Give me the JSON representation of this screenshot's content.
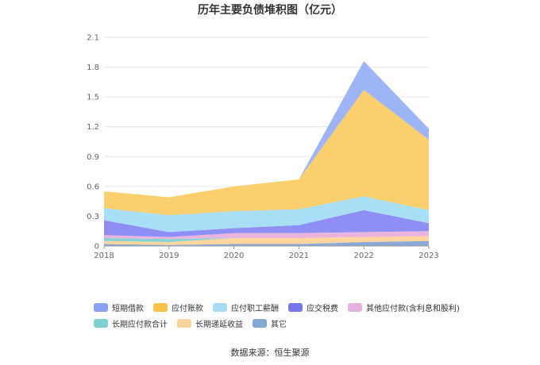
{
  "chart_data": {
    "type": "area",
    "stacked": true,
    "title": "历年主要负债堆积图（亿元）",
    "categories": [
      "2018",
      "2019",
      "2020",
      "2021",
      "2022",
      "2023"
    ],
    "yticks": [
      "0",
      "0.3",
      "0.6",
      "0.9",
      "1.2",
      "1.5",
      "1.8",
      "2.1"
    ],
    "ylim": [
      0,
      2.1
    ],
    "grid": true,
    "legend_position": "bottom",
    "series": [
      {
        "name": "其它",
        "color": "#8aa9d8",
        "values": [
          0.02,
          0.01,
          0.02,
          0.02,
          0.04,
          0.05
        ]
      },
      {
        "name": "长期递延收益",
        "color": "#fcd59c",
        "values": [
          0.03,
          0.03,
          0.06,
          0.06,
          0.05,
          0.05
        ]
      },
      {
        "name": "长期应付款合计",
        "color": "#87d3d3",
        "values": [
          0.03,
          0.03,
          0.0,
          0.0,
          0.0,
          0.0
        ]
      },
      {
        "name": "其他应付款(含利息和股利)",
        "color": "#eab5dd",
        "values": [
          0.03,
          0.02,
          0.05,
          0.05,
          0.05,
          0.05
        ]
      },
      {
        "name": "应交税费",
        "color": "#8e8ef5",
        "values": [
          0.15,
          0.05,
          0.05,
          0.08,
          0.22,
          0.08
        ]
      },
      {
        "name": "应付职工薪酬",
        "color": "#a9def7",
        "values": [
          0.12,
          0.17,
          0.17,
          0.16,
          0.14,
          0.13
        ]
      },
      {
        "name": "应付账款",
        "color": "#fccf6e",
        "values": [
          0.17,
          0.18,
          0.25,
          0.3,
          1.07,
          0.71
        ]
      },
      {
        "name": "短期借款",
        "color": "#9db5f7",
        "values": [
          0.0,
          0.0,
          0.0,
          0.0,
          0.29,
          0.11
        ]
      }
    ]
  },
  "legend": {
    "items": [
      {
        "label": "短期借款",
        "color": "#87a3f2"
      },
      {
        "label": "应付账款",
        "color": "#f9c24a"
      },
      {
        "label": "应付职工薪酬",
        "color": "#a6dcf5"
      },
      {
        "label": "应交税费",
        "color": "#7777ec"
      },
      {
        "label": "其他应付款(含利息和股利)",
        "color": "#e6b1dc"
      },
      {
        "label": "长期应付款合计",
        "color": "#7fd0d0"
      },
      {
        "label": "长期递延收益",
        "color": "#fad39a"
      },
      {
        "label": "其它",
        "color": "#86a6d6"
      }
    ]
  },
  "source": "数据来源：恒生聚源"
}
